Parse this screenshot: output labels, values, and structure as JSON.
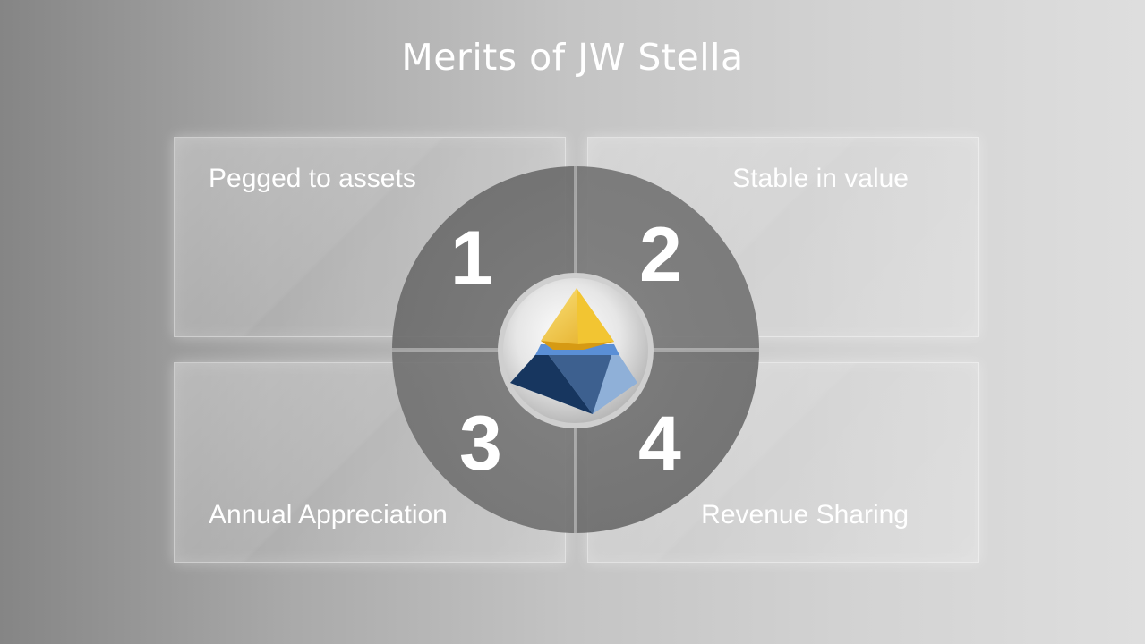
{
  "slide": {
    "title": "Merits of JW Stella"
  },
  "merits": [
    {
      "number": "1",
      "label": "Pegged to assets"
    },
    {
      "number": "2",
      "label": "Stable in value"
    },
    {
      "number": "3",
      "label": "Annual Appreciation"
    },
    {
      "number": "4",
      "label": "Revenue Sharing"
    }
  ],
  "colors": {
    "hub_circle": "#6f6f6f",
    "pyramid_top": "#f2c532",
    "pyramid_band": "#5a8fd6",
    "pyramid_base_dark": "#17365f",
    "pyramid_base_light": "#8fb0d8"
  },
  "logo": {
    "icon": "pyramid-logo-icon"
  }
}
